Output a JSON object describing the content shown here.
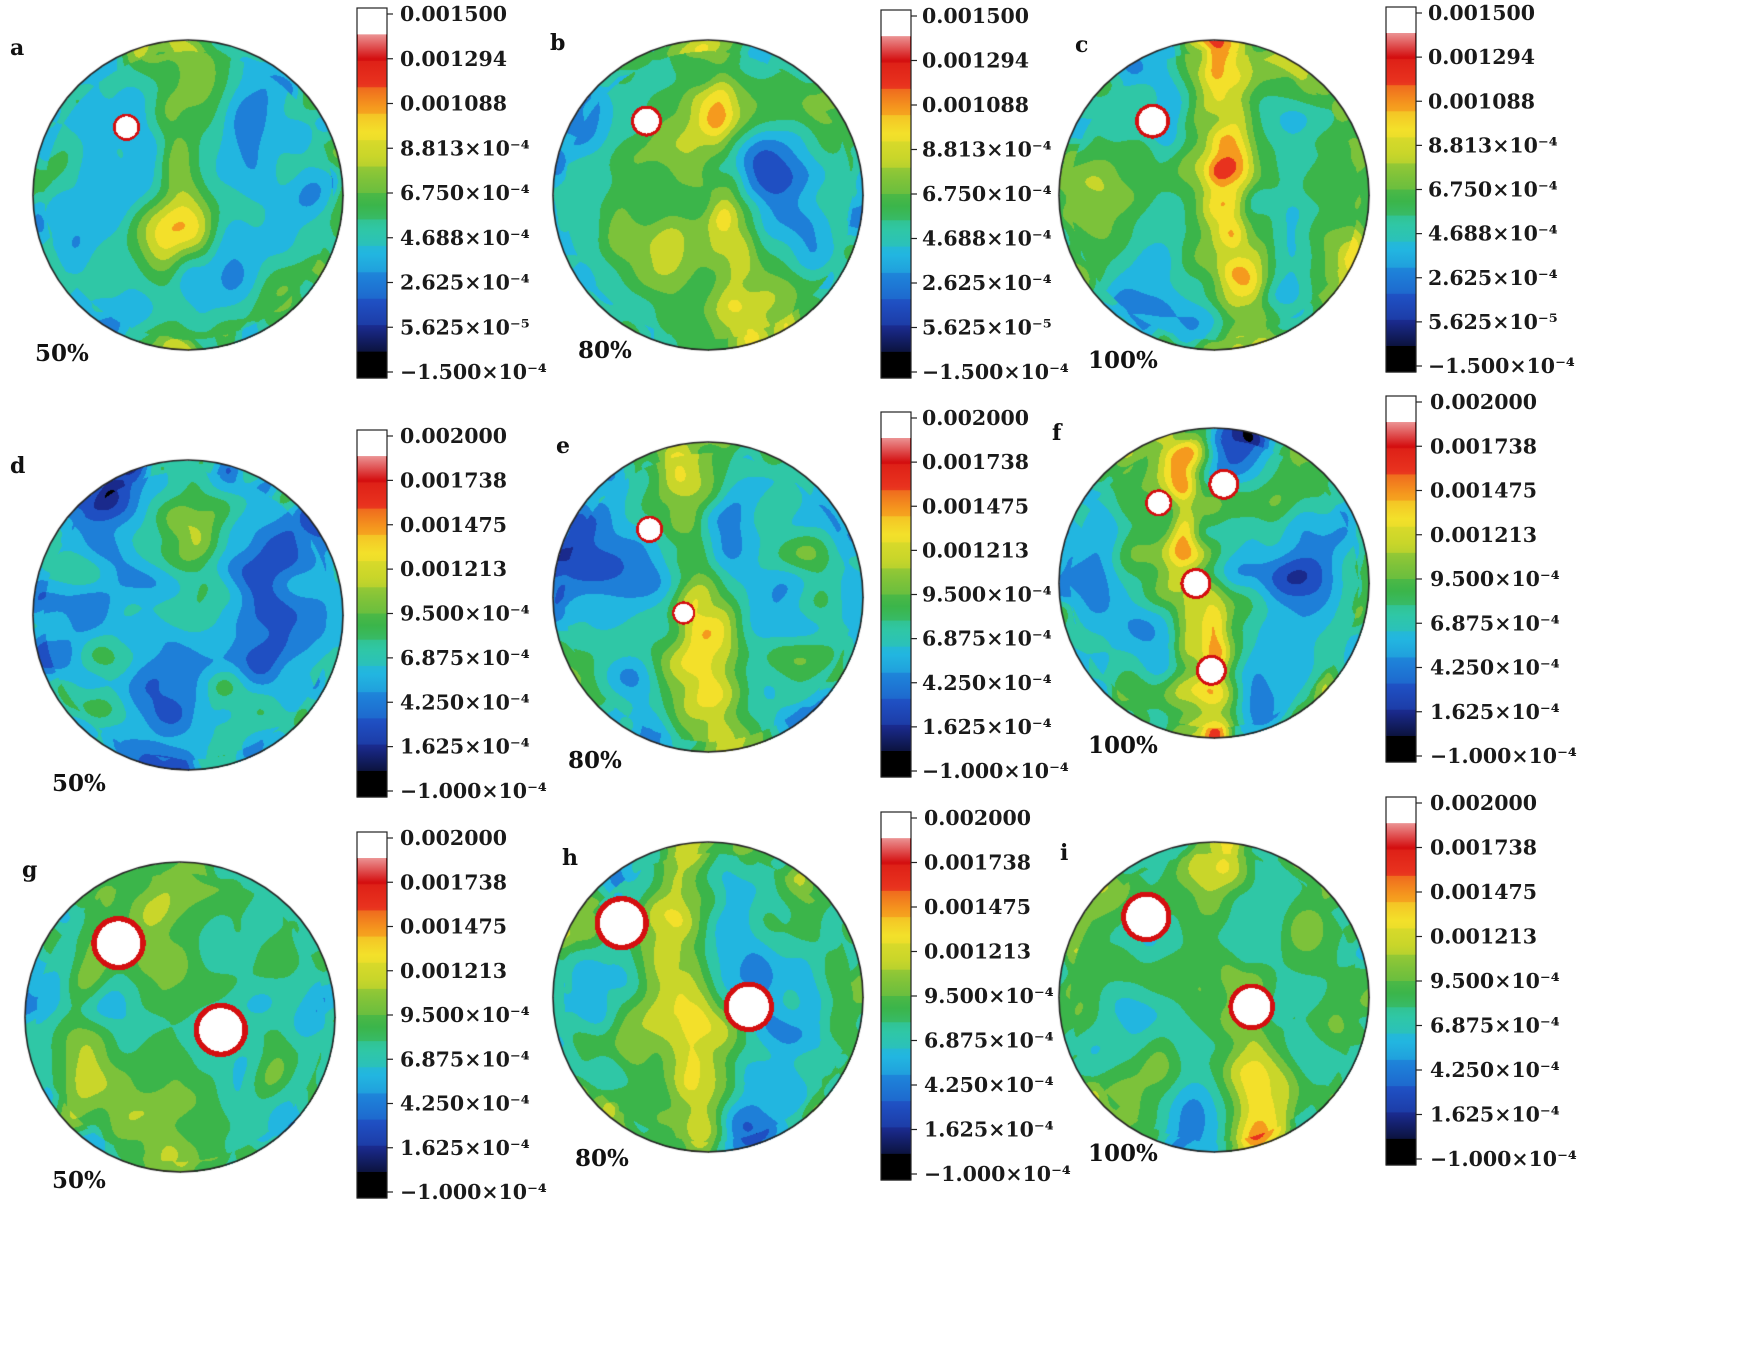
{
  "chart_data": [
    {
      "type": "heatmap",
      "panel": "a",
      "level": "50%",
      "colorbar": {
        "min": -0.00015,
        "max": 0.0015,
        "tick_labels": [
          "0.001500",
          "0.001294",
          "0.001088",
          "8.813×10⁻⁴",
          "6.750×10⁻⁴",
          "4.688×10⁻⁴",
          "2.625×10⁻⁴",
          "5.625×10⁻⁵",
          "−1.500×10⁻⁴"
        ]
      },
      "field": {
        "seed": 11,
        "band_strength": 0.15,
        "base": 0.38,
        "holes": [
          [
            0.3,
            0.28,
            0.035
          ]
        ]
      }
    },
    {
      "type": "heatmap",
      "panel": "b",
      "level": "80%",
      "colorbar": {
        "min": -0.00015,
        "max": 0.0015,
        "tick_labels": [
          "0.001500",
          "0.001294",
          "0.001088",
          "8.813×10⁻⁴",
          "6.750×10⁻⁴",
          "4.688×10⁻⁴",
          "2.625×10⁻⁴",
          "5.625×10⁻⁵",
          "−1.500×10⁻⁴"
        ]
      },
      "field": {
        "seed": 23,
        "band_strength": 0.3,
        "base": 0.4,
        "holes": [
          [
            0.3,
            0.26,
            0.04
          ]
        ]
      }
    },
    {
      "type": "heatmap",
      "panel": "c",
      "level": "100%",
      "colorbar": {
        "min": -0.00015,
        "max": 0.0015,
        "tick_labels": [
          "0.001500",
          "0.001294",
          "0.001088",
          "8.813×10⁻⁴",
          "6.750×10⁻⁴",
          "4.688×10⁻⁴",
          "2.625×10⁻⁴",
          "5.625×10⁻⁵",
          "−1.500×10⁻⁴"
        ]
      },
      "field": {
        "seed": 37,
        "band_strength": 0.45,
        "base": 0.42,
        "holes": [
          [
            0.3,
            0.26,
            0.045
          ]
        ]
      }
    },
    {
      "type": "heatmap",
      "panel": "d",
      "level": "50%",
      "colorbar": {
        "min": -0.0001,
        "max": 0.002,
        "tick_labels": [
          "0.002000",
          "0.001738",
          "0.001475",
          "0.001213",
          "9.500×10⁻⁴",
          "6.875×10⁻⁴",
          "4.250×10⁻⁴",
          "1.625×10⁻⁴",
          "−1.000×10⁻⁴"
        ]
      },
      "field": {
        "seed": 41,
        "band_strength": 0.12,
        "base": 0.3,
        "holes": []
      }
    },
    {
      "type": "heatmap",
      "panel": "e",
      "level": "80%",
      "colorbar": {
        "min": -0.0001,
        "max": 0.002,
        "tick_labels": [
          "0.002000",
          "0.001738",
          "0.001475",
          "0.001213",
          "9.500×10⁻⁴",
          "6.875×10⁻⁴",
          "4.250×10⁻⁴",
          "1.625×10⁻⁴",
          "−1.000×10⁻⁴"
        ]
      },
      "field": {
        "seed": 53,
        "band_strength": 0.3,
        "base": 0.36,
        "holes": [
          [
            0.31,
            0.28,
            0.035
          ],
          [
            0.42,
            0.55,
            0.03
          ]
        ]
      }
    },
    {
      "type": "heatmap",
      "panel": "f",
      "level": "100%",
      "colorbar": {
        "min": -0.0001,
        "max": 0.002,
        "tick_labels": [
          "0.002000",
          "0.001738",
          "0.001475",
          "0.001213",
          "9.500×10⁻⁴",
          "6.875×10⁻⁴",
          "4.250×10⁻⁴",
          "1.625×10⁻⁴",
          "−1.000×10⁻⁴"
        ]
      },
      "field": {
        "seed": 67,
        "band_strength": 0.55,
        "base": 0.34,
        "holes": [
          [
            0.32,
            0.24,
            0.035
          ],
          [
            0.53,
            0.18,
            0.04
          ],
          [
            0.44,
            0.5,
            0.04
          ],
          [
            0.49,
            0.78,
            0.04
          ]
        ]
      }
    },
    {
      "type": "heatmap",
      "panel": "g",
      "level": "50%",
      "colorbar": {
        "min": -0.0001,
        "max": 0.002,
        "tick_labels": [
          "0.002000",
          "0.001738",
          "0.001475",
          "0.001213",
          "9.500×10⁻⁴",
          "6.875×10⁻⁴",
          "4.250×10⁻⁴",
          "1.625×10⁻⁴",
          "−1.000×10⁻⁴"
        ]
      },
      "field": {
        "seed": 79,
        "band_strength": 0.1,
        "base": 0.42,
        "holes": [
          [
            0.3,
            0.26,
            0.07
          ],
          [
            0.63,
            0.54,
            0.07
          ]
        ]
      }
    },
    {
      "type": "heatmap",
      "panel": "h",
      "level": "80%",
      "colorbar": {
        "min": -0.0001,
        "max": 0.002,
        "tick_labels": [
          "0.002000",
          "0.001738",
          "0.001475",
          "0.001213",
          "9.500×10⁻⁴",
          "6.875×10⁻⁴",
          "4.250×10⁻⁴",
          "1.625×10⁻⁴",
          "−1.000×10⁻⁴"
        ]
      },
      "field": {
        "seed": 83,
        "band_strength": 0.2,
        "base": 0.42,
        "holes": [
          [
            0.22,
            0.26,
            0.07
          ],
          [
            0.63,
            0.53,
            0.065
          ]
        ]
      }
    },
    {
      "type": "heatmap",
      "panel": "i",
      "level": "100%",
      "colorbar": {
        "min": -0.0001,
        "max": 0.002,
        "tick_labels": [
          "0.002000",
          "0.001738",
          "0.001475",
          "0.001213",
          "9.500×10⁻⁴",
          "6.875×10⁻⁴",
          "4.250×10⁻⁴",
          "1.625×10⁻⁴",
          "−1.000×10⁻⁴"
        ]
      },
      "field": {
        "seed": 97,
        "band_strength": 0.25,
        "base": 0.42,
        "holes": [
          [
            0.28,
            0.24,
            0.065
          ],
          [
            0.62,
            0.53,
            0.06
          ]
        ]
      }
    }
  ],
  "colormap": [
    "#000000",
    "#1a2a8c",
    "#1f4fc2",
    "#1e7fd8",
    "#22b6e0",
    "#2fc7a6",
    "#3bb54a",
    "#7cc23a",
    "#c9d62a",
    "#f3e02a",
    "#f59a1e",
    "#e8321e",
    "#d40f10",
    "#ffffff"
  ]
}
